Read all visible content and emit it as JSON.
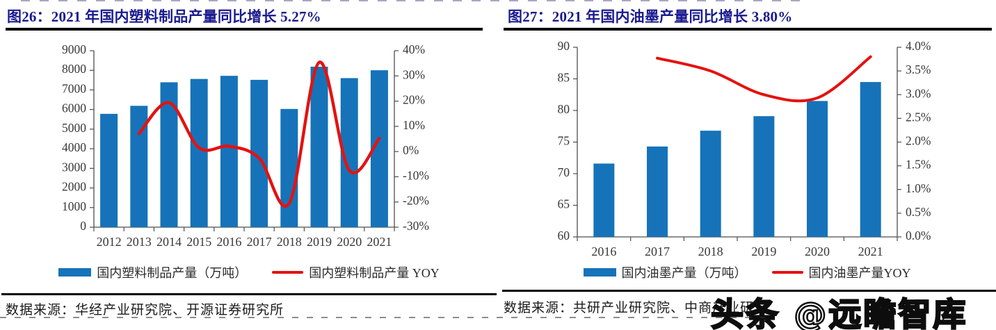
{
  "colors": {
    "bar_blue": "#1673B9",
    "line_red": "#E41210",
    "title_navy": "#1A1A8F",
    "axis_gray": "#4d4d4d",
    "label_gray": "#383838"
  },
  "watermark": {
    "text": "头条 @远瞻智库"
  },
  "panels": [
    {
      "id": "plastic",
      "title": "图26：2021 年国内塑料制品产量同比增长 5.27%",
      "source": "数据来源：华经产业研究院、开源证券研究所",
      "legend": [
        {
          "type": "bar",
          "label": "国内塑料制品产量（万吨）"
        },
        {
          "type": "line",
          "label": "国内塑料制品产量 YOY"
        }
      ]
    },
    {
      "id": "ink",
      "title": "图27：2021 年国内油墨产量同比增长 3.80%",
      "source": "数据来源：共研产业研究院、中商产业研",
      "legend": [
        {
          "type": "bar",
          "label": "国内油墨产量（万吨）"
        },
        {
          "type": "line",
          "label": "国内油墨产量YOY"
        }
      ]
    }
  ],
  "chart_data": [
    {
      "type": "bar",
      "title": "2021 年国内塑料制品产量同比增长 5.27%",
      "categories": [
        "2012",
        "2013",
        "2014",
        "2015",
        "2016",
        "2017",
        "2018",
        "2019",
        "2020",
        "2021"
      ],
      "series": [
        {
          "name": "国内塑料制品产量（万吨）",
          "type": "bar",
          "axis": "left",
          "color": "#1673B9",
          "values": [
            5780,
            6190,
            7390,
            7560,
            7720,
            7515,
            6030,
            8184,
            7603,
            8004
          ]
        },
        {
          "name": "国内塑料制品产量 YOY",
          "type": "line",
          "axis": "right",
          "color": "#E41210",
          "values": [
            null,
            7.1,
            19.4,
            1.5,
            2.1,
            -2.6,
            -20.5,
            35.4,
            -7.5,
            5.27
          ]
        }
      ],
      "left_axis": {
        "min": 0,
        "max": 9000,
        "step": 1000,
        "labels": [
          "9000",
          "8000",
          "7000",
          "6000",
          "5000",
          "4000",
          "3000",
          "2000",
          "1000",
          "0"
        ]
      },
      "right_axis": {
        "min": -30,
        "max": 40,
        "step": 10,
        "labels": [
          "40%",
          "30%",
          "20%",
          "10%",
          "0%",
          "-10%",
          "-20%",
          "-30%"
        ]
      },
      "grid": false,
      "legend_position": "bottom"
    },
    {
      "type": "bar",
      "title": "2021 年国内油墨产量同比增长 3.80%",
      "categories": [
        "2016",
        "2017",
        "2018",
        "2019",
        "2020",
        "2021"
      ],
      "series": [
        {
          "name": "国内油墨产量（万吨）",
          "type": "bar",
          "axis": "left",
          "color": "#1673B9",
          "values": [
            71.6,
            74.3,
            76.8,
            79.1,
            81.5,
            84.5
          ]
        },
        {
          "name": "国内油墨产量YOY",
          "type": "line",
          "axis": "right",
          "color": "#E41210",
          "values": [
            null,
            3.77,
            3.5,
            3.0,
            2.93,
            3.8
          ]
        }
      ],
      "left_axis": {
        "min": 60,
        "max": 90,
        "step": 5,
        "labels": [
          "90",
          "85",
          "80",
          "75",
          "70",
          "65",
          "60"
        ]
      },
      "right_axis": {
        "min": 0,
        "max": 4,
        "step": 0.5,
        "labels": [
          "4.0%",
          "3.5%",
          "3.0%",
          "2.5%",
          "2.0%",
          "1.5%",
          "1.0%",
          "0.5%",
          "0.0%"
        ]
      },
      "grid": false,
      "legend_position": "bottom"
    }
  ]
}
